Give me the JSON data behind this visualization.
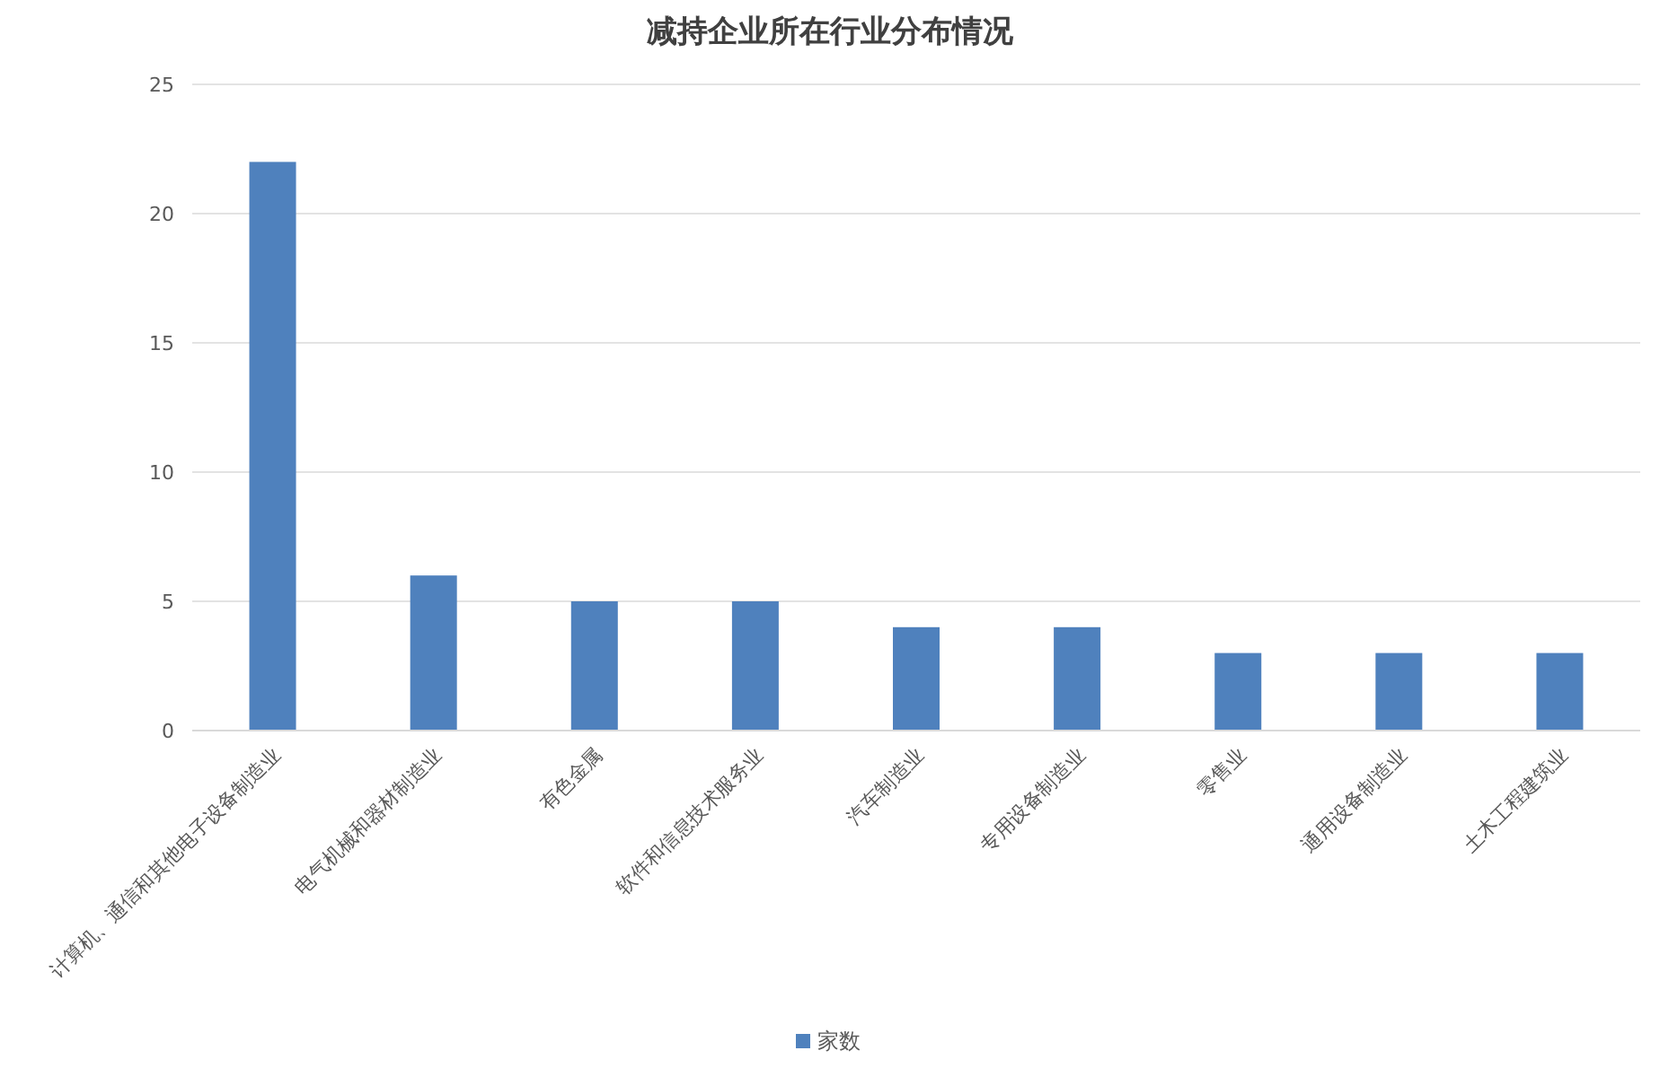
{
  "chart_data": {
    "type": "bar",
    "title": "减持企业所在行业分布情况",
    "categories": [
      "计算机、通信和其他电子设备制造业",
      "电气机械和器材制造业",
      "有色金属",
      "软件和信息技术服务业",
      "汽车制造业",
      "专用设备制造业",
      "零售业",
      "通用设备制造业",
      "土木工程建筑业"
    ],
    "series": [
      {
        "name": "家数",
        "color": "#4f81bd",
        "values": [
          22,
          6,
          5,
          5,
          4,
          4,
          3,
          3,
          3
        ]
      }
    ],
    "ylim": [
      0,
      25
    ],
    "yticks": [
      0,
      5,
      10,
      15,
      20,
      25
    ],
    "grid": "y",
    "legend": "bottom"
  }
}
